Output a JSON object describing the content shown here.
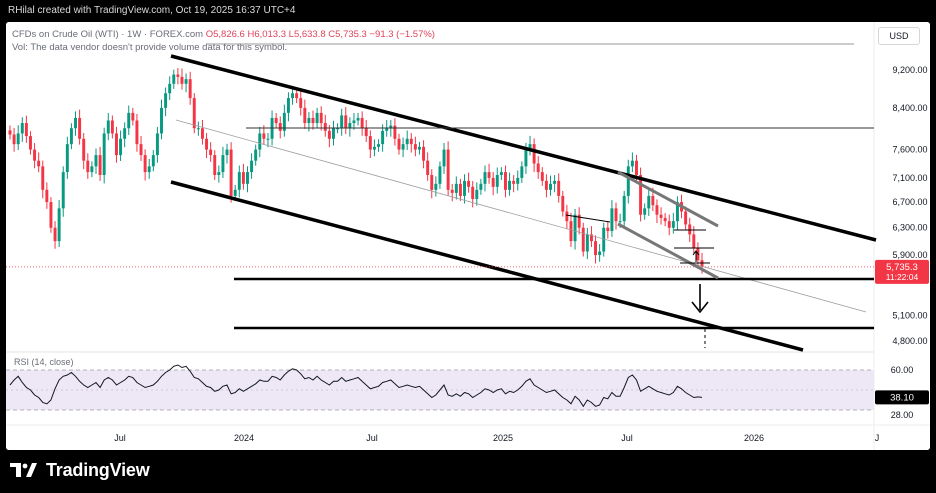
{
  "attribution": "RHilal created with TradingView.com, Oct 19, 2025 16:37 UTC+4",
  "legend": {
    "symbol": "CFDs on Crude Oil (WTI) · 1W · FOREX.com",
    "open": "O5,826.6",
    "high": "H6,013.3",
    "low": "L5,633.8",
    "close": "C5,735.3",
    "change": "−91.3 (−1.57%)",
    "volume_note": "Vol: The data vendor doesn't provide volume data for this symbol."
  },
  "currency_button": "USD",
  "price_badge": {
    "price": "5,735.3",
    "countdown": "11:22:04",
    "color": "#f23645"
  },
  "rsi_panel": {
    "label": "RSI (14, close)",
    "value_badge": "38.10"
  },
  "brand": {
    "name": "TradingView"
  },
  "colors": {
    "up": "#089981",
    "down": "#f23645",
    "rsi_line": "#131722",
    "rsi_band": "#ede7f6"
  },
  "chart_data": [
    {
      "type": "candlestick",
      "title": "CFDs on Crude Oil (WTI)",
      "xlabel": "",
      "ylabel": "",
      "log_scale": true,
      "y_ticks": [
        9200,
        8400,
        7600,
        7100,
        6700,
        6300,
        5900,
        5100,
        4800
      ],
      "x_ticks": [
        "Jul",
        "2024",
        "Jul",
        "2025",
        "Jul",
        "2026",
        "J"
      ],
      "ylim": [
        4550,
        9800
      ],
      "close_series_weekly": [
        7880,
        7700,
        7900,
        8100,
        7850,
        7600,
        7400,
        7300,
        6900,
        6700,
        6300,
        6100,
        6600,
        7200,
        7700,
        8000,
        8200,
        7800,
        7400,
        7200,
        7300,
        7500,
        7150,
        7900,
        8150,
        7900,
        7500,
        7800,
        8000,
        8300,
        8150,
        7700,
        7500,
        7200,
        7300,
        7500,
        7900,
        8400,
        8700,
        8900,
        9100,
        9050,
        8900,
        9000,
        8600,
        8000,
        8000,
        7800,
        7600,
        7500,
        7150,
        7200,
        7500,
        7600,
        6800,
        6900,
        7200,
        7000,
        7200,
        7400,
        7600,
        7900,
        7800,
        7800,
        8200,
        8100,
        7950,
        8300,
        8600,
        8700,
        8600,
        8400,
        8100,
        8200,
        8100,
        8300,
        8100,
        7950,
        7800,
        8000,
        8000,
        8250,
        8000,
        8100,
        8150,
        8200,
        8000,
        7850,
        7600,
        7650,
        7700,
        7950,
        8000,
        8050,
        7800,
        7600,
        7700,
        7800,
        7700,
        7600,
        7650,
        7400,
        7150,
        6900,
        7000,
        7300,
        7600,
        6900,
        6850,
        7000,
        6800,
        7050,
        6950,
        6750,
        6900,
        7000,
        7200,
        7100,
        6950,
        7150,
        7200,
        6900,
        7050,
        7000,
        7100,
        7300,
        7600,
        7700,
        7350,
        7200,
        7050,
        6900,
        7000,
        7050,
        6800,
        6550,
        6400,
        6100,
        6500,
        6300,
        5950,
        6200,
        6100,
        5900,
        5950,
        6300,
        6250,
        6600,
        6400,
        6400,
        6800,
        7300,
        7400,
        7150,
        6500,
        6600,
        6800,
        6650,
        6500,
        6450,
        6400,
        6300,
        6400,
        6700,
        6550,
        6350,
        6200,
        6000,
        5826.6,
        5735.3
      ],
      "last_close": 5735.3,
      "annotations": {
        "channel_upper_line": [
          [
            9400,
            2023.55
          ],
          [
            6050,
            2026.3
          ]
        ],
        "channel_lower_line": [
          [
            7000,
            2023.55
          ],
          [
            4850,
            2026.2
          ]
        ],
        "horizontal_level_8100": 8100,
        "horizontal_level_5700": 5700,
        "horizontal_level_5000": 5000,
        "down_arrow_target": "5100"
      }
    },
    {
      "type": "line",
      "title": "RSI (14, close)",
      "ylim": [
        20,
        72
      ],
      "y_ticks": [
        60.0,
        38.1,
        28.0
      ],
      "bands": [
        60,
        28
      ],
      "values": [
        48,
        52,
        55,
        50,
        46,
        44,
        40,
        38,
        34,
        33,
        36,
        45,
        52,
        55,
        56,
        58,
        55,
        51,
        48,
        46,
        48,
        50,
        46,
        52,
        54,
        52,
        48,
        50,
        52,
        55,
        54,
        50,
        48,
        46,
        47,
        48,
        51,
        55,
        58,
        60,
        63,
        64,
        62,
        63,
        59,
        54,
        53,
        50,
        47,
        46,
        43,
        44,
        47,
        48,
        41,
        42,
        45,
        43,
        45,
        47,
        49,
        52,
        51,
        51,
        55,
        54,
        52,
        56,
        59,
        61,
        60,
        57,
        53,
        54,
        52,
        55,
        52,
        50,
        48,
        51,
        51,
        54,
        51,
        52,
        53,
        54,
        51,
        48,
        45,
        46,
        47,
        50,
        51,
        52,
        49,
        46,
        47,
        48,
        47,
        46,
        47,
        44,
        41,
        38,
        40,
        44,
        48,
        40,
        39,
        41,
        39,
        42,
        41,
        38,
        40,
        42,
        45,
        44,
        42,
        44,
        45,
        41,
        43,
        42,
        44,
        47,
        51,
        53,
        48,
        46,
        44,
        42,
        43,
        44,
        41,
        38,
        36,
        33,
        39,
        36,
        31,
        36,
        34,
        31,
        32,
        38,
        37,
        42,
        39,
        39,
        46,
        54,
        56,
        52,
        43,
        45,
        47,
        45,
        43,
        42,
        41,
        40,
        42,
        47,
        45,
        42,
        40,
        38,
        38.5,
        38.1
      ]
    }
  ]
}
